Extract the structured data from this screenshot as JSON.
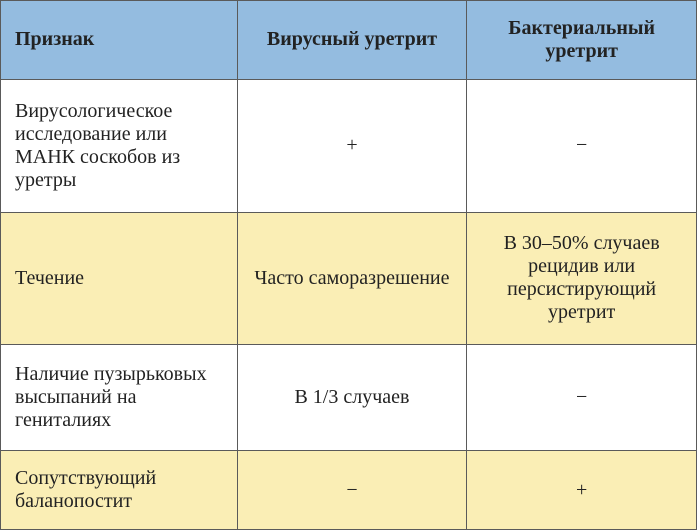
{
  "table": {
    "header_bg": "#94bce0",
    "alt_row_bg": "#faeeb5",
    "default_bg": "#ffffff",
    "text_color": "#222222",
    "font_size": 20,
    "columns": [
      {
        "label": "Признак",
        "align": "left"
      },
      {
        "label": "Вирусный уретрит",
        "align": "center"
      },
      {
        "label": "Бактериальный уретрит",
        "align": "center"
      }
    ],
    "rows": [
      {
        "bg": "#ffffff",
        "cells": [
          "Вирусологическое исследование или МАНК соскобов из уретры",
          "+",
          "−"
        ]
      },
      {
        "bg": "#faeeb5",
        "cells": [
          "Течение",
          "Часто саморазрешение",
          "В 30–50% случаев рецидив или персистирующий уретрит"
        ]
      },
      {
        "bg": "#ffffff",
        "cells": [
          "Наличие пузырьковых высыпаний на гениталиях",
          "В 1/3 случаев",
          "−"
        ]
      },
      {
        "bg": "#faeeb5",
        "cells": [
          "Сопутствующий баланопостит",
          "−",
          "+"
        ]
      }
    ]
  }
}
